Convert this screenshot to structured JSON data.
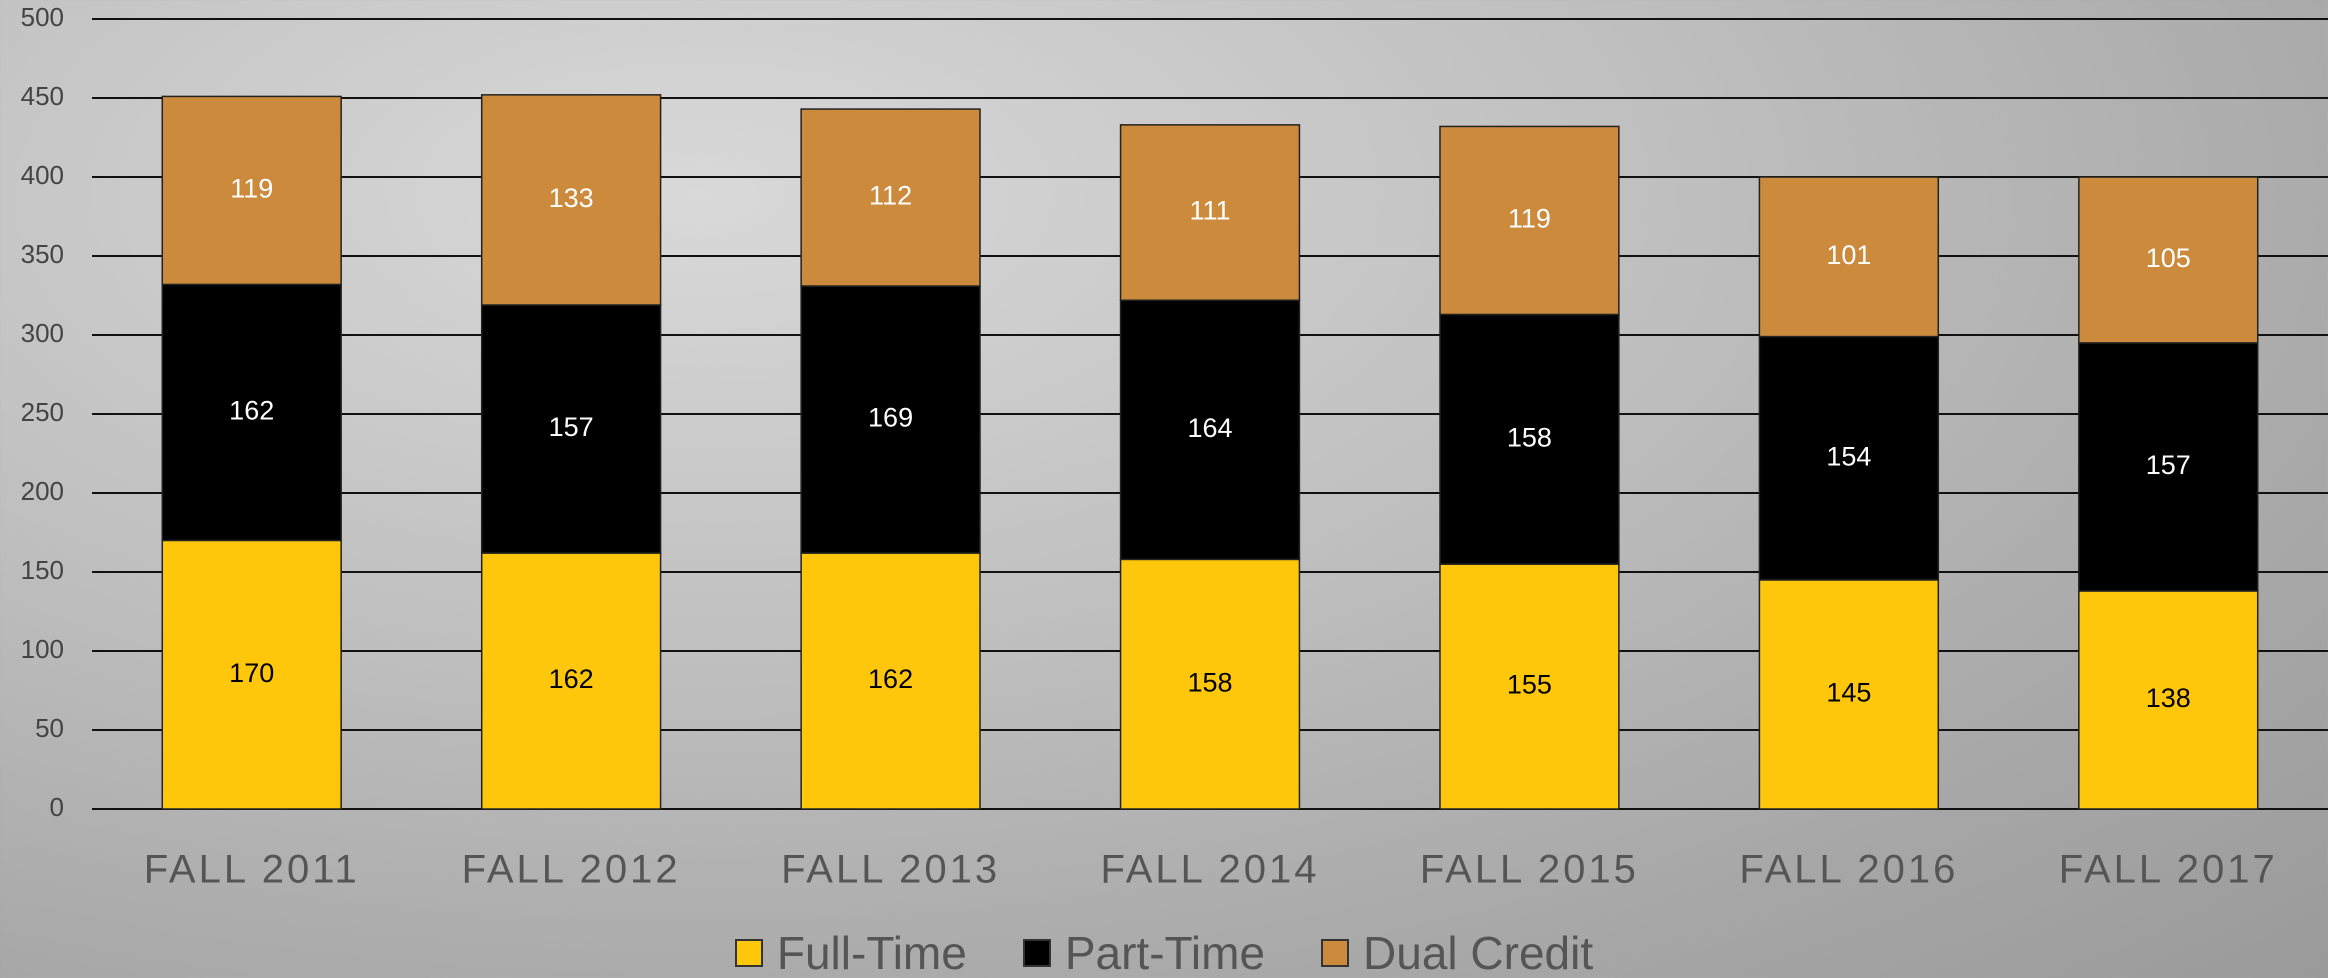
{
  "chart_data": {
    "type": "stacked_bar",
    "categories": [
      "FALL 2011",
      "FALL 2012",
      "FALL 2013",
      "FALL 2014",
      "FALL 2015",
      "FALL 2016",
      "FALL 2017"
    ],
    "series": [
      {
        "name": "Full-Time",
        "color": "#fec70b",
        "values": [
          170,
          162,
          162,
          158,
          155,
          145,
          138
        ]
      },
      {
        "name": "Part-Time",
        "color": "#000000",
        "values": [
          162,
          157,
          169,
          164,
          158,
          154,
          157
        ]
      },
      {
        "name": "Dual Credit",
        "color": "#cc8b3c",
        "values": [
          119,
          133,
          112,
          111,
          119,
          101,
          105
        ]
      }
    ],
    "ylim": [
      0,
      500
    ],
    "yticks": [
      0,
      50,
      100,
      150,
      200,
      250,
      300,
      350,
      400,
      450,
      500
    ],
    "grid": true,
    "legend": "bottom"
  }
}
